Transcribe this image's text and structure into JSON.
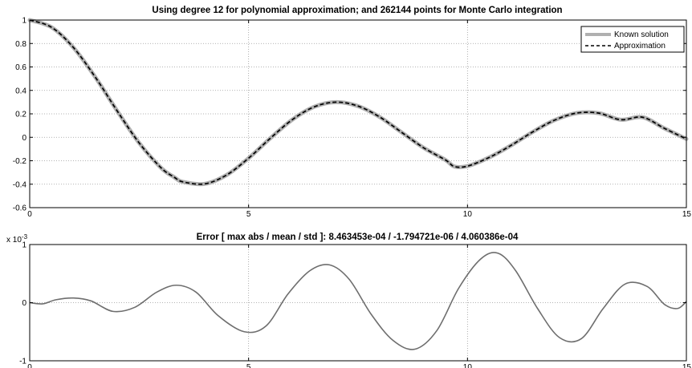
{
  "chart_data": [
    {
      "type": "line",
      "title": "Using degree 12 for polynomial approximation; and 262144 points for Monte Carlo integration",
      "xlim": [
        0,
        15
      ],
      "ylim": [
        -0.6,
        1
      ],
      "x_ticks": [
        "0",
        "5",
        "10",
        "15"
      ],
      "y_ticks": [
        "-0.6",
        "-0.4",
        "-0.2",
        "0",
        "0.2",
        "0.4",
        "0.6",
        "0.8",
        "1"
      ],
      "grid": true,
      "legend_position": "top-right",
      "series": [
        {
          "name": "Known solution",
          "style": "solid",
          "color": "#b0b0b0",
          "x": [
            0,
            0.5,
            1,
            1.5,
            2,
            2.5,
            3,
            3.3,
            3.5,
            4,
            4.5,
            5,
            5.5,
            6,
            6.5,
            7,
            7.5,
            8,
            8.5,
            9,
            9.5,
            9.7,
            10,
            10.5,
            11,
            11.5,
            12,
            12.5,
            13,
            13.5,
            14,
            14.5,
            15
          ],
          "values": [
            1.0,
            0.938,
            0.765,
            0.512,
            0.224,
            -0.048,
            -0.26,
            -0.34,
            -0.38,
            -0.397,
            -0.321,
            -0.178,
            -0.007,
            0.151,
            0.26,
            0.3,
            0.266,
            0.172,
            0.041,
            -0.09,
            -0.194,
            -0.249,
            -0.246,
            -0.171,
            -0.068,
            0.048,
            0.148,
            0.207,
            0.206,
            0.15,
            0.171,
            0.076,
            -0.014
          ]
        },
        {
          "name": "Approximation",
          "style": "dashed",
          "color": "#000000",
          "x": [
            0,
            0.5,
            1,
            1.5,
            2,
            2.5,
            3,
            3.3,
            3.5,
            4,
            4.5,
            5,
            5.5,
            6,
            6.5,
            7,
            7.5,
            8,
            8.5,
            9,
            9.5,
            9.7,
            10,
            10.5,
            11,
            11.5,
            12,
            12.5,
            13,
            13.5,
            14,
            14.5,
            15
          ],
          "values": [
            1.0,
            0.938,
            0.765,
            0.512,
            0.224,
            -0.048,
            -0.26,
            -0.34,
            -0.38,
            -0.397,
            -0.321,
            -0.178,
            -0.007,
            0.151,
            0.26,
            0.3,
            0.266,
            0.172,
            0.041,
            -0.09,
            -0.194,
            -0.249,
            -0.246,
            -0.171,
            -0.068,
            0.048,
            0.148,
            0.207,
            0.206,
            0.15,
            0.171,
            0.076,
            -0.014
          ]
        }
      ]
    },
    {
      "type": "line",
      "title": "Error [ max abs / mean / std ]:   8.463453e-04 / -1.794721e-06 / 4.060386e-04",
      "xlim": [
        0,
        15
      ],
      "ylim": [
        -0.001,
        0.001
      ],
      "x_ticks": [
        "0",
        "5",
        "10",
        "15"
      ],
      "y_ticks": [
        "-1",
        "0",
        "1"
      ],
      "y_scale_label": "x 10",
      "y_scale_exponent": "-3",
      "grid": true,
      "series": [
        {
          "color": "#6e6e6e",
          "x": [
            0,
            0.3,
            0.6,
            1.0,
            1.4,
            1.9,
            2.4,
            2.9,
            3.35,
            3.8,
            4.3,
            4.9,
            5.4,
            5.9,
            6.4,
            6.85,
            7.3,
            7.8,
            8.3,
            8.8,
            9.3,
            9.8,
            10.3,
            10.7,
            11.1,
            11.6,
            12.1,
            12.6,
            13.1,
            13.6,
            14.1,
            14.5,
            14.8,
            15
          ],
          "values": [
            0,
            -2e-05,
            5e-05,
            8e-05,
            3e-05,
            -0.00015,
            -8e-05,
            0.00018,
            0.0003,
            0.00018,
            -0.00022,
            -0.0005,
            -0.0004,
            0.00015,
            0.00055,
            0.00065,
            0.0004,
            -0.0002,
            -0.00065,
            -0.0008,
            -0.00048,
            0.00025,
            0.00075,
            0.00085,
            0.00055,
            -0.0001,
            -0.0006,
            -0.00062,
            -0.0001,
            0.00032,
            0.00028,
            -3e-05,
            -0.0001,
            2e-05
          ]
        }
      ]
    }
  ],
  "legend": {
    "items": [
      "Known solution",
      "Approximation"
    ]
  }
}
